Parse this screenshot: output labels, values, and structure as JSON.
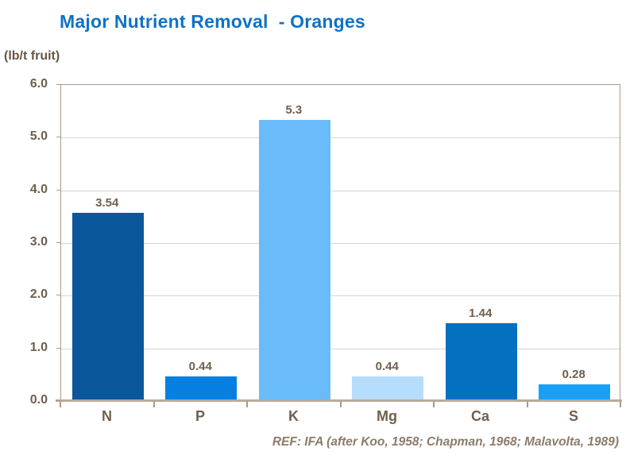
{
  "page": {
    "title": "Major Nutrient Removal  - Oranges",
    "unit_label": "(lb/t fruit)",
    "reference": "REF: IFA (after Koo, 1958; Chapman, 1968; Malavolta, 1989)"
  },
  "colors": {
    "title": "#0e72c6",
    "axis_text": "#6f604e",
    "unit_label": "#665645",
    "reference_text": "#8b7c6a",
    "plot_border": "#a79a8b",
    "gridline": "#dad4cb",
    "axis_line": "#b8ab9c"
  },
  "chart_data": {
    "type": "bar",
    "title": "Major Nutrient Removal  - Oranges",
    "xlabel": "",
    "ylabel": "(lb/t fruit)",
    "categories": [
      "N",
      "P",
      "K",
      "Mg",
      "Ca",
      "S"
    ],
    "values": [
      3.54,
      0.44,
      5.3,
      0.44,
      1.44,
      0.28
    ],
    "value_labels": [
      "3.54",
      "0.44",
      "5.3",
      "0.44",
      "1.44",
      "0.28"
    ],
    "bar_colors": [
      "#0a579b",
      "#0680e0",
      "#69bbfa",
      "#b6defc",
      "#0470c0",
      "#18a0f8"
    ],
    "ylim": [
      0,
      6
    ],
    "y_tick_labels": [
      "6.0",
      "5.0",
      "4.0",
      "3.0",
      "2.0",
      "1.0",
      "0.0"
    ],
    "y_tick_values": [
      6,
      5,
      4,
      3,
      2,
      1,
      0
    ],
    "grid": true,
    "legend": false,
    "annotation": "REF: IFA (after Koo, 1958; Chapman, 1968; Malavolta, 1989)"
  }
}
